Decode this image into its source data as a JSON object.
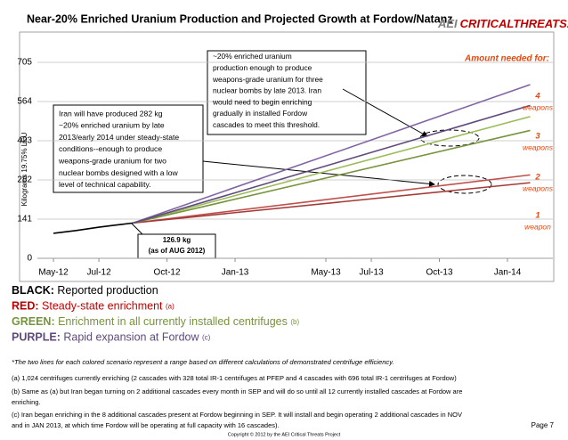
{
  "chart_data": {
    "type": "line",
    "title": "Near-20% Enriched Uranium Production and Projected Growth at Fordow/Natanz",
    "logo": {
      "prefix": "AEI",
      "name": "CRITICALTHREATS.ORG"
    },
    "y_label": "Kilograms 19.75% LEU",
    "xlim": [
      -0.16,
      22
    ],
    "xticks": [
      {
        "value": 0,
        "label": "May-12"
      },
      {
        "value": 2,
        "label": "Jul-12"
      },
      {
        "value": 5,
        "label": "Oct-12"
      },
      {
        "value": 8,
        "label": "Jan-13"
      },
      {
        "value": 12,
        "label": "May-13"
      },
      {
        "value": 14,
        "label": "Jul-13"
      },
      {
        "value": 17,
        "label": "Oct-13"
      },
      {
        "value": 20,
        "label": "Jan-14"
      }
    ],
    "ylim": [
      0,
      705
    ],
    "yticks": [
      0,
      141,
      282,
      423,
      564,
      705
    ],
    "grid": true,
    "series": [
      {
        "color": "#000000",
        "x": [
          0,
          1,
          2,
          3,
          3.5
        ],
        "values": [
          90,
          100,
          112,
          122,
          127
        ]
      },
      {
        "color": "#c0504d",
        "x": [
          3.5,
          21
        ],
        "values": [
          127,
          300
        ]
      },
      {
        "color": "#a33a37",
        "x": [
          3.5,
          21
        ],
        "values": [
          127,
          272
        ]
      },
      {
        "color": "#9bbb59",
        "x": [
          3.5,
          21
        ],
        "values": [
          127,
          510
        ]
      },
      {
        "color": "#77933c",
        "x": [
          3.5,
          21
        ],
        "values": [
          127,
          460
        ]
      },
      {
        "color": "#8064a2",
        "x": [
          3.5,
          21
        ],
        "values": [
          127,
          625
        ]
      },
      {
        "color": "#604a7b",
        "x": [
          3.5,
          21
        ],
        "values": [
          127,
          550
        ]
      }
    ],
    "threshold_header": "Amount needed for:",
    "thresholds": [
      {
        "count": "4",
        "unit": "weapons"
      },
      {
        "count": "3",
        "unit": "weapons"
      },
      {
        "count": "2",
        "unit": "weapons"
      },
      {
        "count": "1",
        "unit": "weapon"
      }
    ],
    "annotations": [
      {
        "lines": [
          "Iran will have produced 282 kg",
          "~20% enriched uranium by late",
          "2013/early 2014 under steady-state",
          "conditions--enough to produce",
          "weapons-grade uranium for two",
          "nuclear bombs designed with a low",
          "level of technical capability."
        ]
      },
      {
        "lines": [
          "~20% enriched uranium",
          "production enough to produce",
          "weapons-grade uranium for three",
          "nuclear bombs by late 2013. Iran",
          "would need to begin enriching",
          "gradually in installed Fordow",
          "cascades to meet this threshold."
        ]
      },
      {
        "lines": [
          "126.9 kg",
          "(as of AUG 2012)"
        ]
      }
    ],
    "legend": [
      {
        "key": "BLACK:",
        "label": " Reported production",
        "note": "",
        "color": "#000000"
      },
      {
        "key": "RED:",
        "label": " Steady-state enrichment ",
        "note": "(a)",
        "color": "#c00000"
      },
      {
        "key": "GREEN:",
        "label": "  Enrichment in all currently installed centrifuges ",
        "note": "(b)",
        "color": "#77933c"
      },
      {
        "key": "PURPLE:",
        "label": " Rapid expansion at Fordow ",
        "note": "(c)",
        "color": "#604a7b"
      }
    ],
    "footnote": "*The two lines for each colored scenario represent a range based on different calculations of demonstrated centrifuge efficiency.",
    "notes": [
      "(a) 1,024 centrifuges currently enriching (2 cascades with 328 total IR-1 centrifuges at PFEP and 4 cascades with 696 total IR-1 centrifuges at Fordow)",
      "(b) Same as (a) but Iran began turning on 2 additional cascades every month in SEP and will do so until all 12 currently installed cascades at Fordow are",
      "enriching.",
      "(c) Iran began enriching in the 8 additional cascades present at Fordow beginning in SEP. It will install and begin operating 2 additional cascades in NOV",
      "and in JAN 2013, at which time Fordow will be operating at full capacity with 16 cascades)."
    ],
    "page": "Page 7",
    "copyright": "Copyright © 2012 by the AEI Critical Threats Project"
  }
}
